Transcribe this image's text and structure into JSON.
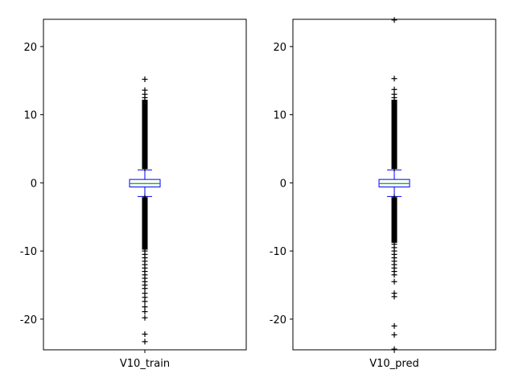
{
  "chart_data": [
    {
      "type": "box",
      "category": "V10_train",
      "ylim": [
        -24.5,
        24
      ],
      "yticks": [
        -20,
        -10,
        0,
        10,
        20
      ],
      "ytick_labels": [
        "-20",
        "-10",
        "0",
        "10",
        "20"
      ],
      "box": {
        "whisker_low": -2.0,
        "q1": -0.6,
        "median": -0.1,
        "q3": 0.5,
        "whisker_high": 1.9
      },
      "outliers": [
        2.1,
        2.5,
        3.0,
        3.5,
        4.0,
        4.5,
        5.0,
        5.5,
        6.0,
        6.5,
        7.0,
        7.5,
        8.0,
        8.5,
        9.0,
        9.5,
        10.0,
        10.5,
        11.0,
        11.5,
        12.0,
        12.5,
        13.0,
        13.6,
        15.2,
        -2.1,
        -2.5,
        -3.0,
        -3.5,
        -4.0,
        -4.5,
        -5.0,
        -5.5,
        -6.0,
        -6.5,
        -7.0,
        -7.5,
        -8.0,
        -8.5,
        -9.0,
        -9.5,
        -10.0,
        -10.5,
        -11.0,
        -11.5,
        -12.0,
        -12.5,
        -13.0,
        -13.5,
        -14.0,
        -14.5,
        -15.0,
        -15.5,
        -16.2,
        -16.8,
        -17.4,
        -18.2,
        -18.9,
        -19.8,
        -22.2,
        -23.3
      ],
      "colors": {
        "box": "#0000ff",
        "median": "#00aa00",
        "whisker": "#0000ff",
        "flier": "#000000"
      }
    },
    {
      "type": "box",
      "category": "V10_pred",
      "ylim": [
        -24.5,
        24
      ],
      "yticks": [
        -20,
        -10,
        0,
        10,
        20
      ],
      "ytick_labels": [
        "-20",
        "-10",
        "0",
        "10",
        "20"
      ],
      "box": {
        "whisker_low": -2.0,
        "q1": -0.6,
        "median": -0.1,
        "q3": 0.5,
        "whisker_high": 1.9
      },
      "outliers": [
        2.1,
        2.5,
        3.0,
        3.5,
        4.0,
        4.5,
        5.0,
        5.5,
        6.0,
        6.5,
        7.0,
        7.5,
        8.0,
        8.5,
        9.0,
        9.5,
        10.0,
        10.5,
        11.0,
        11.5,
        12.0,
        12.5,
        13.0,
        13.7,
        15.3,
        23.9,
        -2.1,
        -2.5,
        -3.0,
        -3.5,
        -4.0,
        -4.5,
        -5.0,
        -5.5,
        -6.0,
        -6.5,
        -7.0,
        -7.5,
        -8.0,
        -8.5,
        -9.0,
        -9.5,
        -10.0,
        -10.5,
        -11.0,
        -11.5,
        -12.0,
        -12.5,
        -13.0,
        -13.5,
        -14.5,
        -16.2,
        -16.7,
        -21.0,
        -22.3,
        -24.4
      ],
      "colors": {
        "box": "#0000ff",
        "median": "#00aa00",
        "whisker": "#0000ff",
        "flier": "#000000"
      }
    }
  ]
}
